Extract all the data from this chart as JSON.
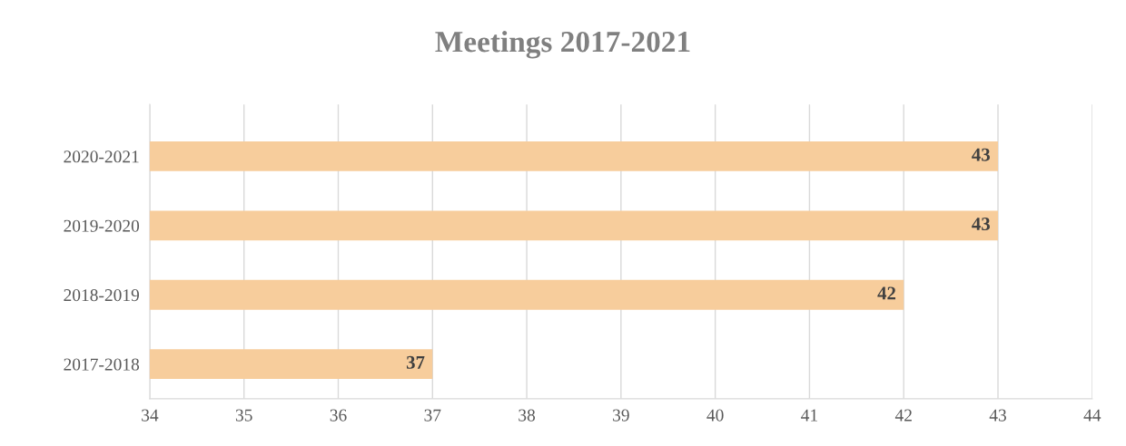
{
  "chart_data": {
    "type": "bar",
    "orientation": "horizontal",
    "title": "Meetings 2017-2021",
    "categories": [
      "2020-2021",
      "2019-2020",
      "2018-2019",
      "2017-2018"
    ],
    "values": [
      43,
      43,
      42,
      37
    ],
    "color": "#f7cd9c",
    "xlim": [
      34,
      44
    ],
    "xticks": [
      34,
      35,
      36,
      37,
      38,
      39,
      40,
      41,
      42,
      43,
      44
    ],
    "grid": "x",
    "data_labels": true,
    "legend": false
  }
}
